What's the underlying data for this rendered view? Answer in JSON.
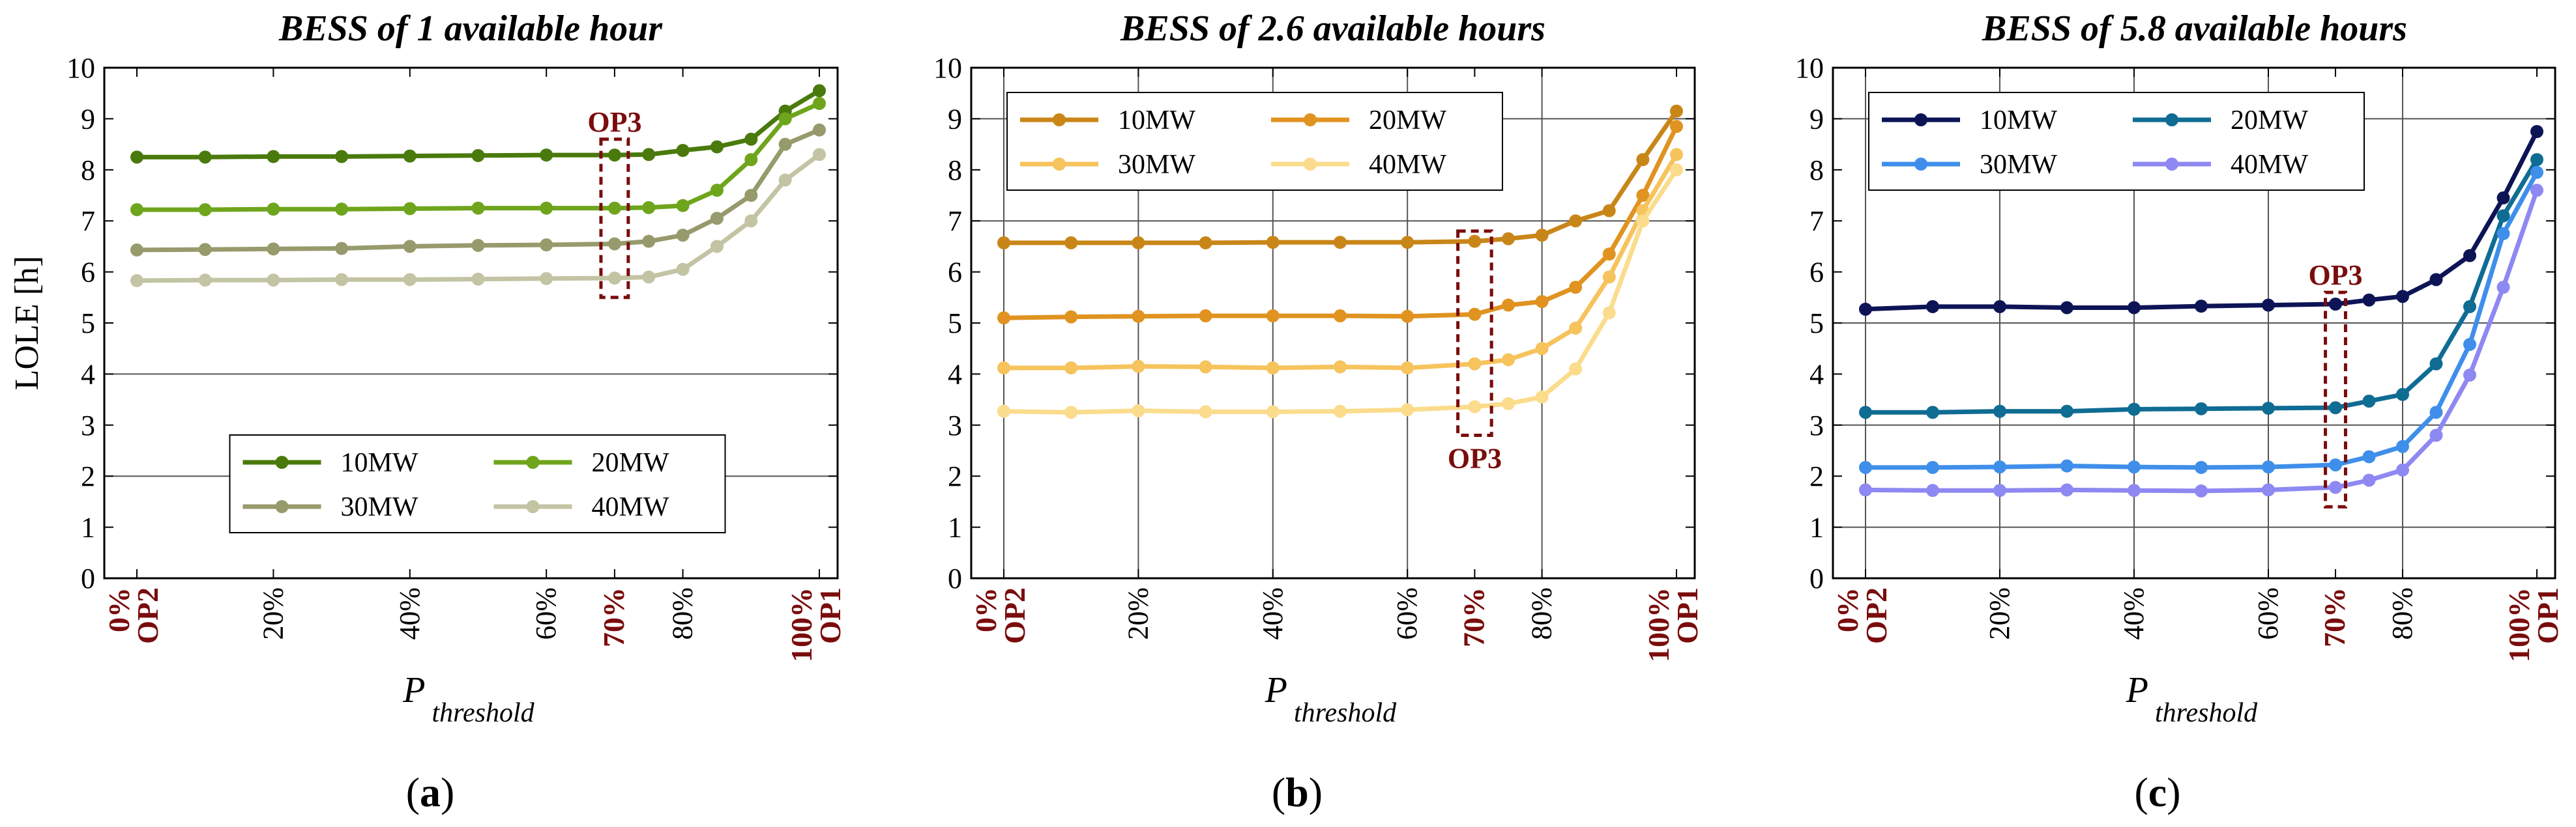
{
  "chart_data": [
    {
      "id": "a",
      "type": "line",
      "title": "BESS of 1 available hour",
      "caption_letter": "a",
      "ylabel": "LOLE [h]",
      "xlabel": "P",
      "xlabel_sub": "threshold",
      "ylim": [
        0,
        10
      ],
      "yticks": [
        "0",
        "1",
        "2",
        "3",
        "4",
        "5",
        "6",
        "7",
        "8",
        "9",
        "10"
      ],
      "xlim": [
        0,
        100
      ],
      "xticks": [
        {
          "x": 0,
          "label": "0%",
          "op": "OP2",
          "highlight": true
        },
        {
          "x": 20,
          "label": "20%"
        },
        {
          "x": 40,
          "label": "40%"
        },
        {
          "x": 60,
          "label": "60%"
        },
        {
          "x": 70,
          "label": "70%",
          "highlight": true
        },
        {
          "x": 80,
          "label": "80%"
        },
        {
          "x": 100,
          "label": "100%",
          "op": "OP1",
          "highlight": true
        }
      ],
      "grid_y": [
        2,
        4
      ],
      "grid_x": [],
      "op3_box": {
        "x0": 68,
        "x1": 72,
        "y0": 5.5,
        "y1": 8.6,
        "label": "OP3",
        "label_pos": "above"
      },
      "legend": {
        "position": "bottom-center"
      },
      "x": [
        0,
        10,
        20,
        30,
        40,
        50,
        60,
        70,
        75,
        80,
        85,
        90,
        95,
        100
      ],
      "series": [
        {
          "name": "10MW",
          "color": "#4a7a0c",
          "values": [
            8.25,
            8.25,
            8.26,
            8.26,
            8.27,
            8.28,
            8.29,
            8.29,
            8.3,
            8.38,
            8.45,
            8.6,
            9.15,
            9.55
          ]
        },
        {
          "name": "20MW",
          "color": "#6fa51c",
          "values": [
            7.22,
            7.22,
            7.23,
            7.23,
            7.24,
            7.25,
            7.25,
            7.25,
            7.26,
            7.3,
            7.6,
            8.2,
            9.0,
            9.3
          ]
        },
        {
          "name": "30MW",
          "color": "#979a6c",
          "values": [
            6.43,
            6.44,
            6.45,
            6.46,
            6.5,
            6.52,
            6.53,
            6.55,
            6.6,
            6.72,
            7.05,
            7.5,
            8.5,
            8.78
          ]
        },
        {
          "name": "40MW",
          "color": "#c3c4a4",
          "values": [
            5.83,
            5.84,
            5.84,
            5.85,
            5.85,
            5.86,
            5.87,
            5.88,
            5.9,
            6.05,
            6.5,
            7.0,
            7.8,
            8.3
          ]
        }
      ]
    },
    {
      "id": "b",
      "type": "line",
      "title": "BESS of 2.6 available hours",
      "caption_letter": "b",
      "ylabel": "",
      "xlabel": "P",
      "xlabel_sub": "threshold",
      "ylim": [
        0,
        10
      ],
      "yticks": [
        "0",
        "1",
        "2",
        "3",
        "4",
        "5",
        "6",
        "7",
        "8",
        "9",
        "10"
      ],
      "xlim": [
        0,
        100
      ],
      "xticks": [
        {
          "x": 0,
          "label": "0%",
          "op": "OP2",
          "highlight": true
        },
        {
          "x": 20,
          "label": "20%"
        },
        {
          "x": 40,
          "label": "40%"
        },
        {
          "x": 60,
          "label": "60%"
        },
        {
          "x": 70,
          "label": "70%",
          "highlight": true
        },
        {
          "x": 80,
          "label": "80%"
        },
        {
          "x": 100,
          "label": "100%",
          "op": "OP1",
          "highlight": true
        }
      ],
      "grid_y": [
        7,
        9
      ],
      "grid_x": [
        0,
        20,
        40,
        60,
        80
      ],
      "op3_box": {
        "x0": 67.5,
        "x1": 72.5,
        "y0": 2.8,
        "y1": 6.8,
        "label": "OP3",
        "label_pos": "below"
      },
      "legend": {
        "position": "top-left"
      },
      "x": [
        0,
        10,
        20,
        30,
        40,
        50,
        60,
        70,
        75,
        80,
        85,
        90,
        95,
        100
      ],
      "series": [
        {
          "name": "10MW",
          "color": "#c98618",
          "values": [
            6.57,
            6.57,
            6.57,
            6.57,
            6.58,
            6.58,
            6.58,
            6.6,
            6.65,
            6.72,
            7.0,
            7.2,
            8.2,
            9.15
          ]
        },
        {
          "name": "20MW",
          "color": "#e09320",
          "values": [
            5.1,
            5.12,
            5.13,
            5.14,
            5.14,
            5.14,
            5.13,
            5.17,
            5.35,
            5.42,
            5.7,
            6.35,
            7.5,
            8.85
          ]
        },
        {
          "name": "30MW",
          "color": "#f6c35c",
          "values": [
            4.12,
            4.12,
            4.15,
            4.14,
            4.12,
            4.14,
            4.12,
            4.2,
            4.28,
            4.5,
            4.9,
            5.9,
            7.2,
            8.3
          ]
        },
        {
          "name": "40MW",
          "color": "#fbdc8c",
          "values": [
            3.27,
            3.25,
            3.28,
            3.26,
            3.26,
            3.27,
            3.3,
            3.36,
            3.42,
            3.55,
            4.1,
            5.2,
            7.0,
            8.0
          ]
        }
      ]
    },
    {
      "id": "c",
      "type": "line",
      "title": "BESS of 5.8 available hours",
      "caption_letter": "c",
      "ylabel": "",
      "xlabel": "P",
      "xlabel_sub": "threshold",
      "ylim": [
        0,
        10
      ],
      "yticks": [
        "0",
        "1",
        "2",
        "3",
        "4",
        "5",
        "6",
        "7",
        "8",
        "9",
        "10"
      ],
      "xlim": [
        0,
        100
      ],
      "xticks": [
        {
          "x": 0,
          "label": "0%",
          "op": "OP2",
          "highlight": true
        },
        {
          "x": 20,
          "label": "20%"
        },
        {
          "x": 40,
          "label": "40%"
        },
        {
          "x": 60,
          "label": "60%"
        },
        {
          "x": 70,
          "label": "70%",
          "highlight": true
        },
        {
          "x": 80,
          "label": "80%"
        },
        {
          "x": 100,
          "label": "100%",
          "op": "OP1",
          "highlight": true
        }
      ],
      "grid_y": [
        1,
        3,
        5,
        9
      ],
      "grid_x": [
        0,
        20,
        40,
        60,
        80
      ],
      "op3_box": {
        "x0": 68.5,
        "x1": 71.5,
        "y0": 1.4,
        "y1": 5.6,
        "label": "OP3",
        "label_pos": "above"
      },
      "legend": {
        "position": "top-left"
      },
      "x": [
        0,
        10,
        20,
        30,
        40,
        50,
        60,
        70,
        75,
        80,
        85,
        90,
        95,
        100
      ],
      "series": [
        {
          "name": "10MW",
          "color": "#0d1456",
          "values": [
            5.27,
            5.32,
            5.32,
            5.3,
            5.3,
            5.33,
            5.35,
            5.37,
            5.45,
            5.52,
            5.85,
            6.32,
            7.45,
            8.75
          ]
        },
        {
          "name": "20MW",
          "color": "#0f6c93",
          "values": [
            3.25,
            3.25,
            3.27,
            3.27,
            3.31,
            3.32,
            3.33,
            3.34,
            3.47,
            3.6,
            4.2,
            5.32,
            7.1,
            8.2
          ]
        },
        {
          "name": "30MW",
          "color": "#3f8fea",
          "values": [
            2.17,
            2.17,
            2.18,
            2.2,
            2.18,
            2.17,
            2.18,
            2.22,
            2.38,
            2.58,
            3.25,
            4.58,
            6.75,
            7.95
          ]
        },
        {
          "name": "40MW",
          "color": "#8e88f2",
          "values": [
            1.73,
            1.72,
            1.72,
            1.73,
            1.72,
            1.71,
            1.73,
            1.78,
            1.92,
            2.12,
            2.8,
            3.98,
            5.7,
            7.6
          ]
        }
      ]
    }
  ]
}
